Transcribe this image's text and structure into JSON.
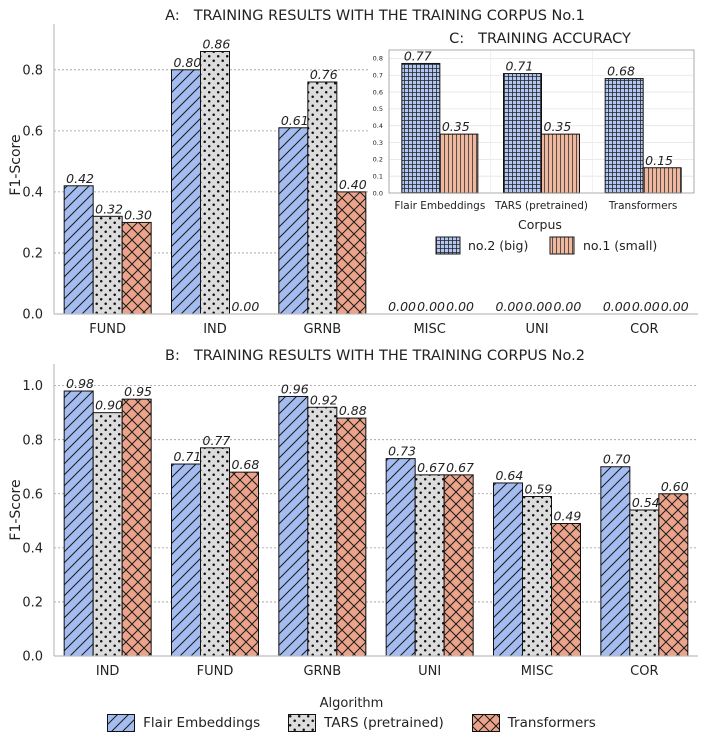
{
  "chart_data": [
    {
      "panel": "A",
      "type": "bar",
      "title_prefix": "A:",
      "title": "TRAINING RESULTS WITH THE TRAINING CORPUS No.1",
      "xlabel": "",
      "ylabel": "F1-Score",
      "ylim": [
        0,
        0.95
      ],
      "yticks": [
        0.0,
        0.2,
        0.4,
        0.6,
        0.8
      ],
      "ytick_labels": [
        "0.0",
        "0.2",
        "0.4",
        "0.6",
        "0.8"
      ],
      "grid": true,
      "categories": [
        "FUND",
        "IND",
        "GRNB",
        "MISC",
        "UNI",
        "COR"
      ],
      "series": [
        {
          "name": "Flair Embeddings",
          "values": [
            0.42,
            0.8,
            0.61,
            0.0,
            0.0,
            0.0
          ],
          "labels": [
            "0.42",
            "0.80",
            "0.61",
            "0.00",
            "0.00",
            "0.00"
          ]
        },
        {
          "name": "TARS (pretrained)",
          "values": [
            0.32,
            0.86,
            0.76,
            0.0,
            0.0,
            0.0
          ],
          "labels": [
            "0.32",
            "0.86",
            "0.76",
            "0.00",
            "0.00",
            "0.00"
          ]
        },
        {
          "name": "Transformers",
          "values": [
            0.3,
            0.0,
            0.4,
            0.0,
            0.0,
            0.0
          ],
          "labels": [
            "0.30",
            "0.00",
            "0.40",
            "0.00",
            "0.00",
            "0.00"
          ]
        }
      ]
    },
    {
      "panel": "B",
      "type": "bar",
      "title_prefix": "B:",
      "title": "TRAINING RESULTS WITH THE TRAINING CORPUS No.2",
      "xlabel": "",
      "ylabel": "F1-Score",
      "ylim": [
        0,
        1.08
      ],
      "yticks": [
        0.0,
        0.2,
        0.4,
        0.6,
        0.8,
        1.0
      ],
      "ytick_labels": [
        "0.0",
        "0.2",
        "0.4",
        "0.6",
        "0.8",
        "1.0"
      ],
      "grid": true,
      "categories": [
        "IND",
        "FUND",
        "GRNB",
        "UNI",
        "MISC",
        "COR"
      ],
      "series": [
        {
          "name": "Flair Embeddings",
          "values": [
            0.98,
            0.71,
            0.96,
            0.73,
            0.64,
            0.7
          ],
          "labels": [
            "0.98",
            "0.71",
            "0.96",
            "0.73",
            "0.64",
            "0.70"
          ]
        },
        {
          "name": "TARS (pretrained)",
          "values": [
            0.9,
            0.77,
            0.92,
            0.67,
            0.59,
            0.54
          ],
          "labels": [
            "0.90",
            "0.77",
            "0.92",
            "0.67",
            "0.59",
            "0.54"
          ]
        },
        {
          "name": "Transformers",
          "values": [
            0.95,
            0.68,
            0.88,
            0.67,
            0.49,
            0.6
          ],
          "labels": [
            "0.95",
            "0.68",
            "0.88",
            "0.67",
            "0.49",
            "0.60"
          ]
        }
      ]
    },
    {
      "panel": "C",
      "type": "bar",
      "title_prefix": "C:",
      "title": "TRAINING ACCURACY",
      "xlabel": "Corpus",
      "ylabel": "",
      "ylim": [
        0,
        0.85
      ],
      "yticks": [
        0.0,
        0.1,
        0.2,
        0.3,
        0.4,
        0.5,
        0.6,
        0.7,
        0.8
      ],
      "ytick_labels": [
        "0.0",
        "0.1",
        "0.2",
        "0.3",
        "0.4",
        "0.5",
        "0.6",
        "0.7",
        "0.8"
      ],
      "grid": true,
      "categories": [
        "Flair Embeddings",
        "TARS (pretrained)",
        "Transformers"
      ],
      "series": [
        {
          "name": "no.2 (big)",
          "values": [
            0.77,
            0.71,
            0.68
          ],
          "labels": [
            "0.77",
            "0.71",
            "0.68"
          ]
        },
        {
          "name": "no.1 (small)",
          "values": [
            0.35,
            0.35,
            0.15
          ],
          "labels": [
            "0.35",
            "0.35",
            "0.15"
          ]
        }
      ],
      "legend": "below"
    }
  ],
  "legend": {
    "title": "Algorithm",
    "placement": "bottom-center",
    "items": [
      {
        "label": "Flair Embeddings",
        "color": "#a4bcf0",
        "pattern": "diagonal-hatch"
      },
      {
        "label": "TARS (pretrained)",
        "color": "#dcdcdc",
        "pattern": "dots"
      },
      {
        "label": "Transformers",
        "color": "#eca38b",
        "pattern": "cross-hatch"
      }
    ]
  },
  "inset_colors": {
    "big": "#b2c6f2",
    "small": "#efb79e"
  }
}
